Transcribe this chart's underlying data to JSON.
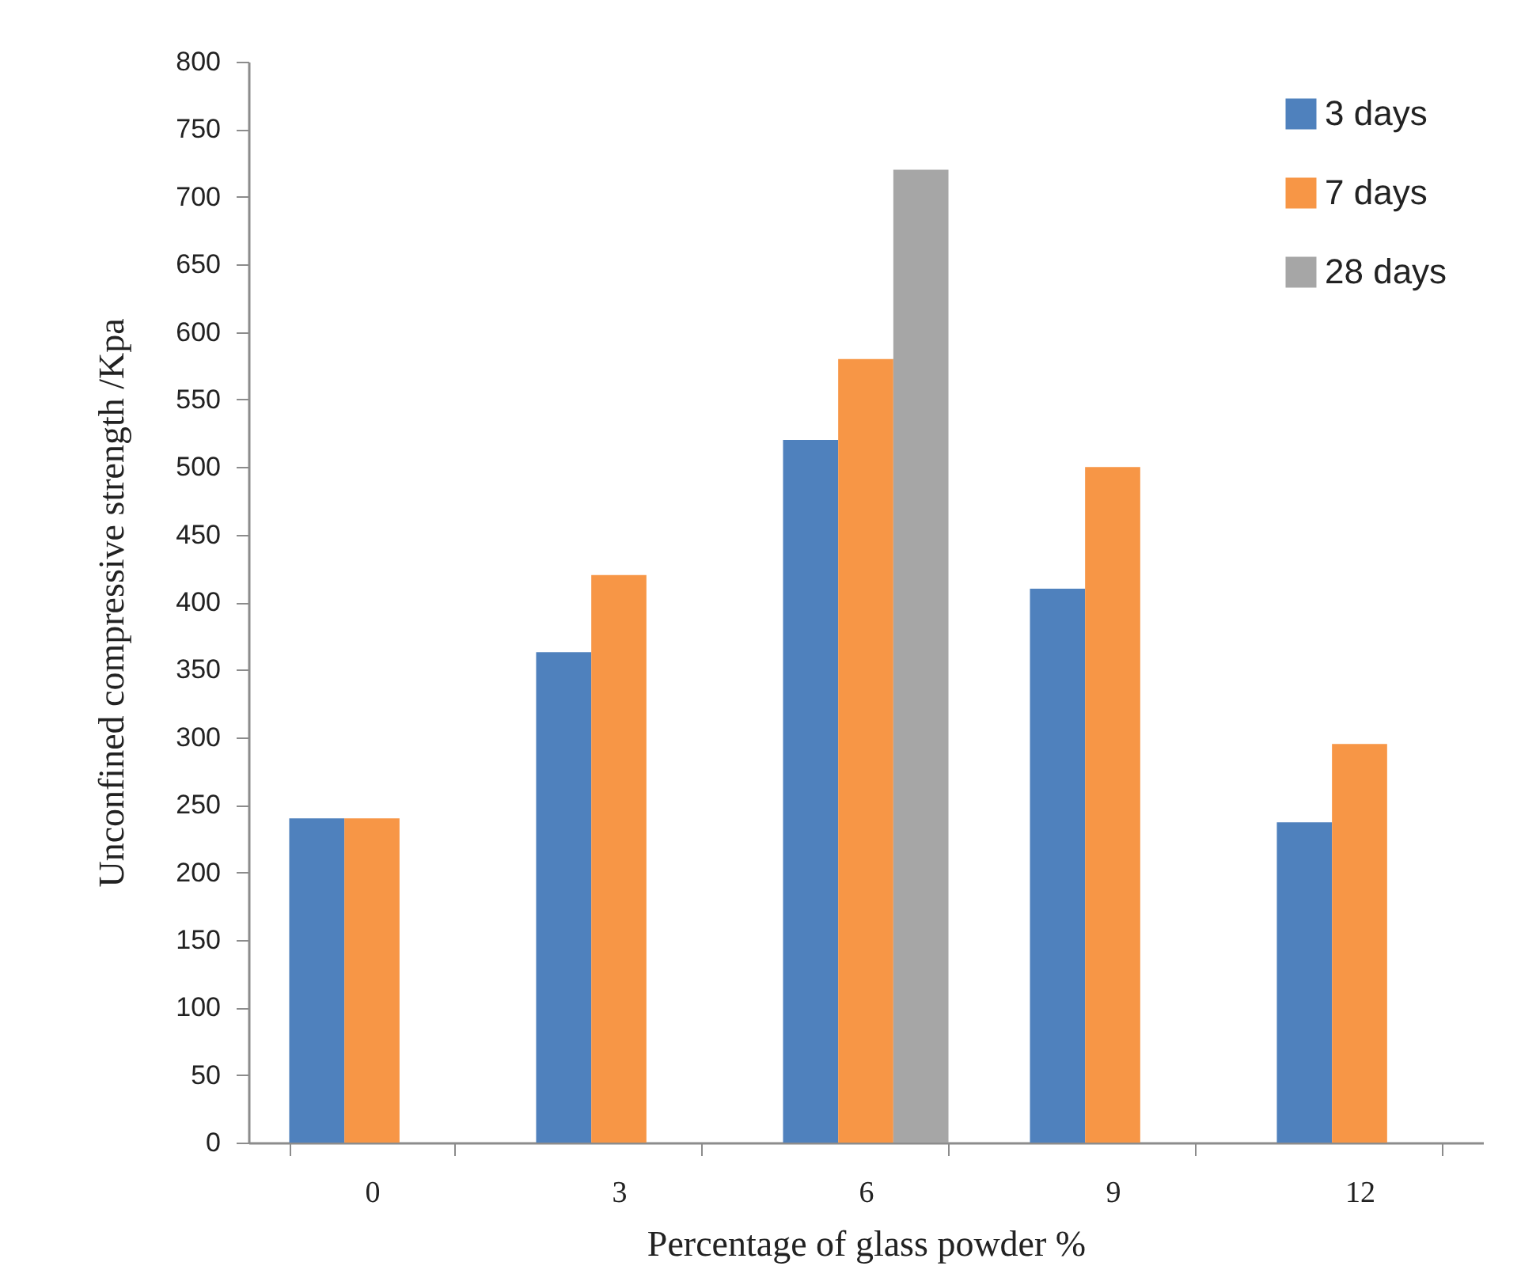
{
  "chart_data": {
    "type": "bar",
    "xlabel": "Percentage of glass powder %",
    "ylabel": "Unconfined compressive strength /Kpa",
    "categories": [
      "0",
      "3",
      "6",
      "9",
      "12"
    ],
    "series": [
      {
        "name": "3 days",
        "color": "#4f81bd",
        "values": [
          240,
          363,
          520,
          410,
          237
        ]
      },
      {
        "name": "7 days",
        "color": "#f79646",
        "values": [
          240,
          420,
          580,
          500,
          295
        ]
      },
      {
        "name": "28 days",
        "color": "#a6a6a6",
        "values": [
          null,
          null,
          720,
          null,
          null
        ]
      }
    ],
    "ylim": [
      0,
      800
    ],
    "yticks": [
      0,
      50,
      100,
      150,
      200,
      250,
      300,
      350,
      400,
      450,
      500,
      550,
      600,
      650,
      700,
      750,
      800
    ],
    "legend": "top right",
    "grid": false
  }
}
